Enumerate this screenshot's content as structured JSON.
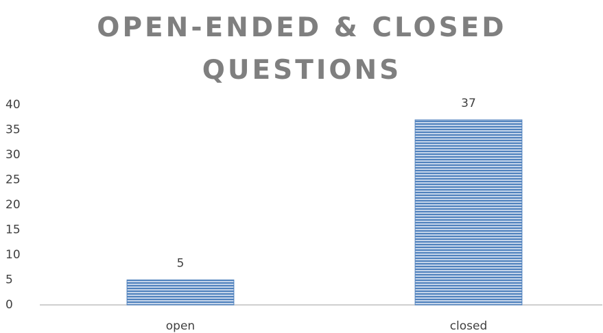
{
  "chart_data": {
    "type": "bar",
    "title": "OPEN-ENDED & CLOSED QUESTIONS",
    "categories": [
      "open",
      "closed"
    ],
    "values": [
      5,
      37
    ],
    "color": "#4f81bd",
    "ylim": [
      0,
      40
    ],
    "yticks": [
      0,
      5,
      10,
      15,
      20,
      25,
      30,
      35,
      40
    ],
    "grid": false,
    "data_labels": true
  }
}
